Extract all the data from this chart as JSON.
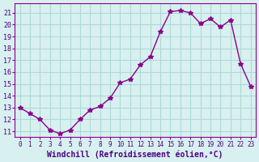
{
  "x": [
    0,
    1,
    2,
    3,
    4,
    5,
    6,
    7,
    8,
    9,
    10,
    11,
    12,
    13,
    14,
    15,
    16,
    17,
    18,
    19,
    20,
    21,
    22,
    23
  ],
  "y": [
    13.0,
    12.5,
    12.0,
    11.1,
    10.8,
    11.1,
    12.0,
    12.8,
    13.1,
    13.8,
    15.1,
    15.4,
    16.6,
    17.3,
    19.4,
    21.1,
    21.2,
    21.0,
    20.1,
    20.5,
    19.8,
    20.4,
    16.7,
    14.8
  ],
  "line_color": "#8B008B",
  "marker": "*",
  "marker_size": 4,
  "background_color": "#d8f0f0",
  "grid_color": "#b0d8d8",
  "xlabel": "Windchill (Refroidissement éolien,°C)",
  "xlabel_fontsize": 7,
  "ylabel_ticks": [
    11,
    12,
    13,
    14,
    15,
    16,
    17,
    18,
    19,
    20,
    21
  ],
  "xticks": [
    0,
    1,
    2,
    3,
    4,
    5,
    6,
    7,
    8,
    9,
    10,
    11,
    12,
    13,
    14,
    15,
    16,
    17,
    18,
    19,
    20,
    21,
    22,
    23
  ],
  "ylim": [
    10.5,
    21.8
  ],
  "xlim": [
    -0.5,
    23.5
  ]
}
